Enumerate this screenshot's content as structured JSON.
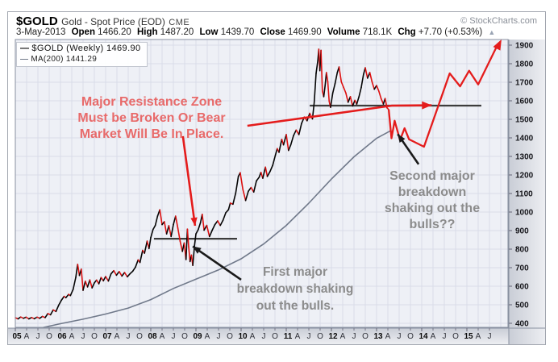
{
  "header": {
    "symbol": "$GOLD",
    "name": "Gold - Spot Price (EOD)",
    "exchange": "CME",
    "copyright": "© StockCharts.com",
    "quote": {
      "date": "3-May-2013",
      "open_label": "Open",
      "open": "1466.20",
      "high_label": "High",
      "high": "1487.20",
      "low_label": "Low",
      "low": "1439.70",
      "close_label": "Close",
      "close": "1469.90",
      "volume_label": "Volume",
      "volume": "718.1K",
      "chg_label": "Chg",
      "chg": "+7.70 (+0.53%)",
      "direction_icon": "▲"
    }
  },
  "legend": {
    "series1": "$GOLD (Weekly) 1469.90",
    "series2": "MA(200) 1441.29",
    "dash": "—"
  },
  "annotations": {
    "resistance_line1": "Major Resistance Zone",
    "resistance_line2": "Must be Broken Or Bear",
    "resistance_line3": "Market Will Be In Place.",
    "second_l1": "Second major",
    "second_l2": "breakdown",
    "second_l3": "shaking out the",
    "second_l4": "bulls??",
    "first_l1": "First major",
    "first_l2": "breakdown shaking",
    "first_l3": "out the bulls."
  },
  "colors": {
    "price_up": "#050505",
    "price_down": "#dd1111",
    "projection_red": "#e41c1c",
    "ma_line": "#70798a",
    "resistance": "#3c3c3c",
    "arrow_black": "#1a1a1a",
    "plot_bg": "#eef0f6",
    "grid": "#d9dce8",
    "axis_strip_dark": "#c9cdd6",
    "axis_strip_light": "#edeef2",
    "plot_border": "#8890a0"
  },
  "chart_data": {
    "type": "line",
    "title": "$GOLD Gold - Spot Price (EOD) CME",
    "xlabel": "",
    "ylabel": "",
    "x_range_years": [
      2005,
      2015.92
    ],
    "ylim": [
      380,
      1925
    ],
    "grid": true,
    "legend_position": "top-left",
    "y_ticks": [
      400,
      500,
      600,
      700,
      800,
      900,
      1000,
      1100,
      1200,
      1300,
      1400,
      1500,
      1600,
      1700,
      1800,
      1900
    ],
    "x_axis": {
      "year_labels": [
        "05",
        "06",
        "07",
        "08",
        "09",
        "10",
        "11",
        "12",
        "13",
        "14",
        "15"
      ],
      "quarter_labels": [
        "A",
        "J",
        "O"
      ],
      "tick_interval": "quarterly"
    },
    "series": [
      {
        "name": "$GOLD (Weekly)",
        "current_value": 1469.9,
        "style": "two-color-weekly",
        "points": [
          [
            2005.0,
            430
          ],
          [
            2005.06,
            424
          ],
          [
            2005.12,
            434
          ],
          [
            2005.18,
            427
          ],
          [
            2005.24,
            433
          ],
          [
            2005.3,
            424
          ],
          [
            2005.36,
            431
          ],
          [
            2005.42,
            425
          ],
          [
            2005.48,
            433
          ],
          [
            2005.54,
            427
          ],
          [
            2005.6,
            437
          ],
          [
            2005.66,
            431
          ],
          [
            2005.72,
            452
          ],
          [
            2005.78,
            446
          ],
          [
            2005.84,
            472
          ],
          [
            2005.9,
            464
          ],
          [
            2005.96,
            498
          ],
          [
            2006.02,
            524
          ],
          [
            2006.08,
            545
          ],
          [
            2006.12,
            538
          ],
          [
            2006.18,
            556
          ],
          [
            2006.22,
            549
          ],
          [
            2006.28,
            583
          ],
          [
            2006.34,
            648
          ],
          [
            2006.38,
            718
          ],
          [
            2006.42,
            658
          ],
          [
            2006.46,
            692
          ],
          [
            2006.5,
            578
          ],
          [
            2006.55,
            627
          ],
          [
            2006.6,
            596
          ],
          [
            2006.65,
            634
          ],
          [
            2006.7,
            591
          ],
          [
            2006.75,
            618
          ],
          [
            2006.8,
            633
          ],
          [
            2006.85,
            613
          ],
          [
            2006.9,
            647
          ],
          [
            2006.95,
            629
          ],
          [
            2007.0,
            652
          ],
          [
            2007.06,
            628
          ],
          [
            2007.12,
            667
          ],
          [
            2007.18,
            684
          ],
          [
            2007.24,
            659
          ],
          [
            2007.3,
            679
          ],
          [
            2007.36,
            655
          ],
          [
            2007.42,
            674
          ],
          [
            2007.48,
            651
          ],
          [
            2007.54,
            667
          ],
          [
            2007.6,
            681
          ],
          [
            2007.66,
            703
          ],
          [
            2007.72,
            742
          ],
          [
            2007.76,
            728
          ],
          [
            2007.82,
            793
          ],
          [
            2007.86,
            778
          ],
          [
            2007.92,
            843
          ],
          [
            2007.96,
            803
          ],
          [
            2008.0,
            862
          ],
          [
            2008.05,
            906
          ],
          [
            2008.1,
            928
          ],
          [
            2008.15,
            978
          ],
          [
            2008.2,
            1012
          ],
          [
            2008.25,
            932
          ],
          [
            2008.3,
            948
          ],
          [
            2008.35,
            882
          ],
          [
            2008.4,
            926
          ],
          [
            2008.45,
            868
          ],
          [
            2008.5,
            932
          ],
          [
            2008.55,
            978
          ],
          [
            2008.6,
            912
          ],
          [
            2008.65,
            842
          ],
          [
            2008.7,
            788
          ],
          [
            2008.74,
            833
          ],
          [
            2008.78,
            744
          ],
          [
            2008.81,
            908
          ],
          [
            2008.84,
            812
          ],
          [
            2008.87,
            733
          ],
          [
            2008.9,
            768
          ],
          [
            2008.93,
            712
          ],
          [
            2008.97,
            822
          ],
          [
            2009.0,
            882
          ],
          [
            2009.05,
            905
          ],
          [
            2009.1,
            942
          ],
          [
            2009.14,
            988
          ],
          [
            2009.18,
            902
          ],
          [
            2009.24,
            928
          ],
          [
            2009.3,
            868
          ],
          [
            2009.36,
            902
          ],
          [
            2009.42,
            932
          ],
          [
            2009.48,
            952
          ],
          [
            2009.54,
            928
          ],
          [
            2009.6,
            956
          ],
          [
            2009.66,
            996
          ],
          [
            2009.72,
            1012
          ],
          [
            2009.76,
            1048
          ],
          [
            2009.82,
            1042
          ],
          [
            2009.88,
            1102
          ],
          [
            2009.94,
            1192
          ],
          [
            2009.98,
            1212
          ],
          [
            2010.04,
            1122
          ],
          [
            2010.1,
            1062
          ],
          [
            2010.16,
            1112
          ],
          [
            2010.22,
            1132
          ],
          [
            2010.28,
            1108
          ],
          [
            2010.34,
            1168
          ],
          [
            2010.4,
            1188
          ],
          [
            2010.44,
            1214
          ],
          [
            2010.48,
            1182
          ],
          [
            2010.54,
            1242
          ],
          [
            2010.58,
            1192
          ],
          [
            2010.64,
            1218
          ],
          [
            2010.7,
            1252
          ],
          [
            2010.76,
            1308
          ],
          [
            2010.8,
            1342
          ],
          [
            2010.84,
            1322
          ],
          [
            2010.9,
            1392
          ],
          [
            2010.94,
            1362
          ],
          [
            2011.0,
            1418
          ],
          [
            2011.05,
            1332
          ],
          [
            2011.1,
            1362
          ],
          [
            2011.16,
            1412
          ],
          [
            2011.22,
            1442
          ],
          [
            2011.28,
            1418
          ],
          [
            2011.34,
            1478
          ],
          [
            2011.4,
            1512
          ],
          [
            2011.46,
            1492
          ],
          [
            2011.52,
            1532
          ],
          [
            2011.58,
            1502
          ],
          [
            2011.62,
            1592
          ],
          [
            2011.66,
            1748
          ],
          [
            2011.7,
            1818
          ],
          [
            2011.72,
            1878
          ],
          [
            2011.745,
            1762
          ],
          [
            2011.77,
            1872
          ],
          [
            2011.8,
            1652
          ],
          [
            2011.83,
            1622
          ],
          [
            2011.86,
            1682
          ],
          [
            2011.89,
            1752
          ],
          [
            2011.92,
            1702
          ],
          [
            2011.95,
            1598
          ],
          [
            2011.98,
            1565
          ],
          [
            2012.03,
            1642
          ],
          [
            2012.08,
            1692
          ],
          [
            2012.13,
            1752
          ],
          [
            2012.17,
            1782
          ],
          [
            2012.22,
            1702
          ],
          [
            2012.27,
            1672
          ],
          [
            2012.32,
            1642
          ],
          [
            2012.37,
            1592
          ],
          [
            2012.42,
            1622
          ],
          [
            2012.47,
            1572
          ],
          [
            2012.52,
            1602
          ],
          [
            2012.56,
            1582
          ],
          [
            2012.61,
            1622
          ],
          [
            2012.66,
            1672
          ],
          [
            2012.71,
            1742
          ],
          [
            2012.75,
            1778
          ],
          [
            2012.8,
            1722
          ],
          [
            2012.85,
            1752
          ],
          [
            2012.9,
            1702
          ],
          [
            2012.95,
            1662
          ],
          [
            2013.0,
            1682
          ],
          [
            2013.05,
            1652
          ],
          [
            2013.1,
            1612
          ],
          [
            2013.15,
            1582
          ],
          [
            2013.19,
            1612
          ],
          [
            2013.23,
            1562
          ],
          [
            2013.27,
            1552
          ]
        ]
      },
      {
        "name": "MA(200)",
        "current_value": 1441.29,
        "style": "gray-line",
        "points": [
          [
            2005.62,
            378
          ],
          [
            2006.0,
            398
          ],
          [
            2006.5,
            422
          ],
          [
            2007.0,
            450
          ],
          [
            2007.5,
            482
          ],
          [
            2008.0,
            528
          ],
          [
            2008.5,
            588
          ],
          [
            2009.0,
            638
          ],
          [
            2009.5,
            688
          ],
          [
            2010.0,
            748
          ],
          [
            2010.5,
            828
          ],
          [
            2011.0,
            928
          ],
          [
            2011.5,
            1048
          ],
          [
            2012.0,
            1178
          ],
          [
            2012.5,
            1298
          ],
          [
            2013.0,
            1398
          ],
          [
            2013.33,
            1441
          ]
        ]
      },
      {
        "name": "projection",
        "style": "red-arrow-line",
        "points": [
          [
            2013.27,
            1552
          ],
          [
            2013.33,
            1398
          ],
          [
            2013.4,
            1492
          ],
          [
            2013.52,
            1388
          ],
          [
            2013.62,
            1452
          ],
          [
            2013.72,
            1392
          ],
          [
            2014.05,
            1352
          ],
          [
            2014.62,
            1748
          ],
          [
            2014.85,
            1678
          ],
          [
            2015.05,
            1762
          ],
          [
            2015.25,
            1688
          ],
          [
            2015.66,
            1892
          ]
        ]
      }
    ],
    "resistance_lines": [
      {
        "t1": 2008.07,
        "t2": 2009.91,
        "price": 856
      },
      {
        "t1": 2011.52,
        "t2": 2015.32,
        "price": 1574
      }
    ],
    "annotation_arrows": [
      {
        "name": "red-down-arrow",
        "color": "red",
        "pts": [
          [
            2008.71,
            1409
          ],
          [
            2008.98,
            926
          ]
        ],
        "width": 2.6,
        "head": 10
      },
      {
        "name": "red-long-arrow",
        "color": "red",
        "pts": [
          [
            2010.14,
            1465
          ],
          [
            2013.34,
            1574
          ],
          [
            2014.22,
            1576
          ]
        ],
        "width": 2.6,
        "head": 12
      },
      {
        "name": "black-first-arrow",
        "color": "black",
        "pts": [
          [
            2010.0,
            635
          ],
          [
            2008.93,
            815
          ]
        ],
        "width": 2.6,
        "head": 10
      },
      {
        "name": "black-second-arrow",
        "color": "black",
        "pts": [
          [
            2013.93,
            1258
          ],
          [
            2013.47,
            1420
          ]
        ],
        "width": 2.6,
        "head": 10
      }
    ]
  }
}
